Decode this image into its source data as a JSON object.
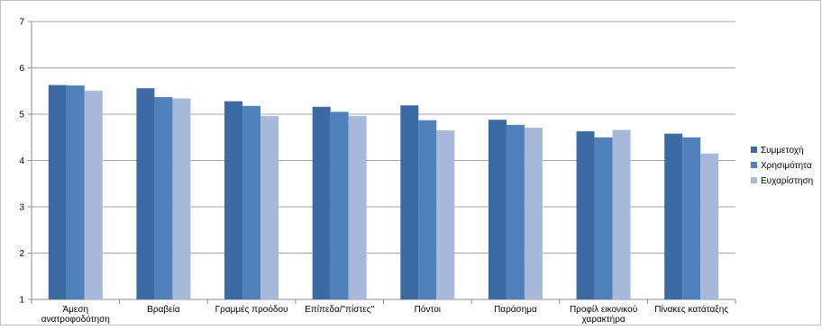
{
  "chart_data": {
    "type": "bar",
    "categories": [
      "Άμεση ανατροφοδότηση",
      "Βραβεία",
      "Γραμμές προόδου",
      "Επίπεδα/\"πίστες\"",
      "Πόντοι",
      "Παράσημα",
      "Προφίλ εικονικού χαρακτήρα",
      "Πίνακες κατάταξης"
    ],
    "series": [
      {
        "name": "Συμμετοχή",
        "color": "#3c6aa5",
        "values": [
          5.63,
          5.56,
          5.28,
          5.16,
          5.19,
          4.88,
          4.63,
          4.58
        ]
      },
      {
        "name": "Χρησιμότητα",
        "color": "#4f81bd",
        "values": [
          5.62,
          5.37,
          5.18,
          5.05,
          4.87,
          4.77,
          4.5,
          4.5
        ]
      },
      {
        "name": "Ευχαρίστηση",
        "color": "#a7b9db",
        "values": [
          5.51,
          5.34,
          4.96,
          4.96,
          4.65,
          4.71,
          4.66,
          4.15
        ]
      }
    ],
    "ylim": [
      1,
      7
    ],
    "yticks": [
      "1",
      "2",
      "3",
      "4",
      "5",
      "6",
      "7"
    ],
    "grid": "horizontal",
    "legend_position": "right"
  }
}
